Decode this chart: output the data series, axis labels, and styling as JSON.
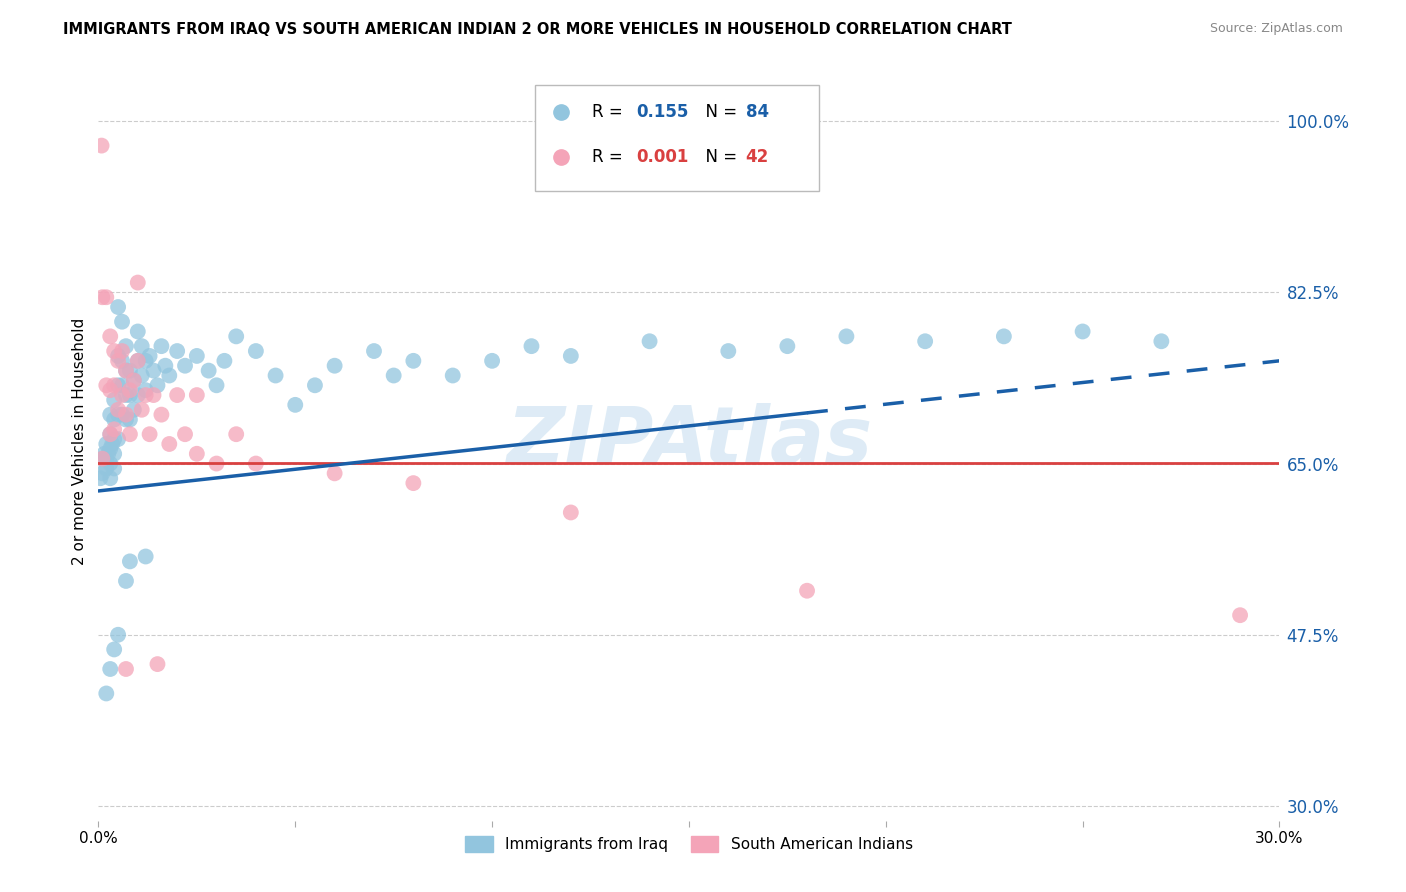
{
  "title": "IMMIGRANTS FROM IRAQ VS SOUTH AMERICAN INDIAN 2 OR MORE VEHICLES IN HOUSEHOLD CORRELATION CHART",
  "source": "Source: ZipAtlas.com",
  "ylabel": "2 or more Vehicles in Household",
  "ytick_labels": [
    "100.0%",
    "82.5%",
    "65.0%",
    "47.5%"
  ],
  "ytick_values": [
    1.0,
    0.825,
    0.65,
    0.475
  ],
  "ytick_right_extra": {
    "label": "30.0%",
    "value": 0.3
  },
  "color_blue": "#92c5de",
  "color_pink": "#f4a4b8",
  "trend_blue": "#1a5fa8",
  "trend_red": "#d94040",
  "watermark_color": "#c8dff0",
  "xlim": [
    0.0,
    0.3
  ],
  "ylim": [
    0.285,
    1.06
  ],
  "blue_trend_y0": 0.622,
  "blue_trend_y1": 0.755,
  "blue_trend_solid_x_end": 0.18,
  "pink_trend_y": 0.651,
  "blue_x": [
    0.0005,
    0.001,
    0.001,
    0.0015,
    0.002,
    0.002,
    0.002,
    0.0025,
    0.003,
    0.003,
    0.003,
    0.003,
    0.003,
    0.0035,
    0.004,
    0.004,
    0.004,
    0.004,
    0.004,
    0.005,
    0.005,
    0.005,
    0.005,
    0.005,
    0.006,
    0.006,
    0.006,
    0.006,
    0.007,
    0.007,
    0.007,
    0.007,
    0.008,
    0.008,
    0.008,
    0.009,
    0.009,
    0.01,
    0.01,
    0.01,
    0.011,
    0.011,
    0.012,
    0.012,
    0.013,
    0.014,
    0.015,
    0.016,
    0.017,
    0.018,
    0.02,
    0.022,
    0.025,
    0.028,
    0.03,
    0.032,
    0.035,
    0.04,
    0.045,
    0.05,
    0.055,
    0.06,
    0.07,
    0.075,
    0.08,
    0.09,
    0.1,
    0.11,
    0.12,
    0.14,
    0.16,
    0.175,
    0.19,
    0.21,
    0.23,
    0.25,
    0.27,
    0.002,
    0.003,
    0.004,
    0.005,
    0.007,
    0.008,
    0.012
  ],
  "blue_y": [
    0.635,
    0.64,
    0.655,
    0.66,
    0.67,
    0.655,
    0.645,
    0.66,
    0.7,
    0.68,
    0.665,
    0.65,
    0.635,
    0.67,
    0.715,
    0.695,
    0.675,
    0.66,
    0.645,
    0.81,
    0.76,
    0.73,
    0.7,
    0.675,
    0.795,
    0.755,
    0.73,
    0.7,
    0.77,
    0.745,
    0.72,
    0.695,
    0.745,
    0.72,
    0.695,
    0.735,
    0.705,
    0.785,
    0.755,
    0.72,
    0.77,
    0.74,
    0.755,
    0.725,
    0.76,
    0.745,
    0.73,
    0.77,
    0.75,
    0.74,
    0.765,
    0.75,
    0.76,
    0.745,
    0.73,
    0.755,
    0.78,
    0.765,
    0.74,
    0.71,
    0.73,
    0.75,
    0.765,
    0.74,
    0.755,
    0.74,
    0.755,
    0.77,
    0.76,
    0.775,
    0.765,
    0.77,
    0.78,
    0.775,
    0.78,
    0.785,
    0.775,
    0.415,
    0.44,
    0.46,
    0.475,
    0.53,
    0.55,
    0.555
  ],
  "pink_x": [
    0.0008,
    0.001,
    0.001,
    0.002,
    0.002,
    0.003,
    0.003,
    0.003,
    0.004,
    0.004,
    0.004,
    0.005,
    0.005,
    0.006,
    0.006,
    0.007,
    0.007,
    0.008,
    0.008,
    0.009,
    0.01,
    0.01,
    0.011,
    0.012,
    0.013,
    0.014,
    0.015,
    0.016,
    0.018,
    0.02,
    0.022,
    0.025,
    0.03,
    0.035,
    0.04,
    0.06,
    0.08,
    0.12,
    0.18,
    0.29,
    0.007,
    0.025
  ],
  "pink_y": [
    0.975,
    0.82,
    0.655,
    0.82,
    0.73,
    0.78,
    0.725,
    0.68,
    0.765,
    0.73,
    0.685,
    0.755,
    0.705,
    0.765,
    0.72,
    0.745,
    0.7,
    0.725,
    0.68,
    0.735,
    0.835,
    0.755,
    0.705,
    0.72,
    0.68,
    0.72,
    0.445,
    0.7,
    0.67,
    0.72,
    0.68,
    0.72,
    0.65,
    0.68,
    0.65,
    0.64,
    0.63,
    0.6,
    0.52,
    0.495,
    0.44,
    0.66
  ]
}
